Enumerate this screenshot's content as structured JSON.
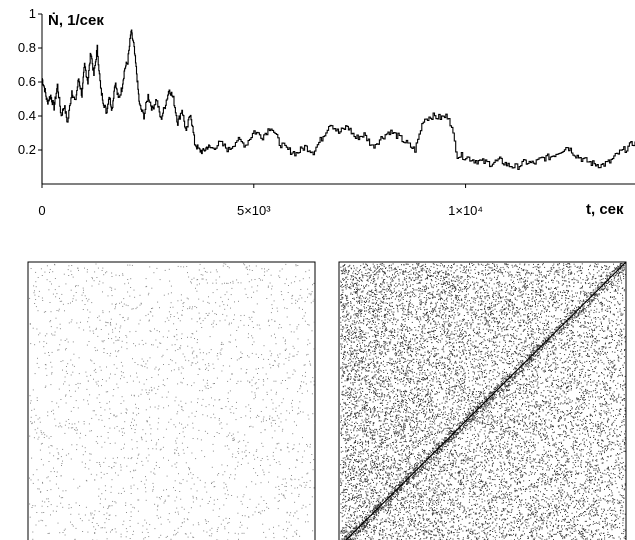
{
  "chart_data": [
    {
      "type": "line",
      "ylabel": "Ṅ, 1/сек",
      "xlabel": "t, сек",
      "xlim": [
        0,
        14000
      ],
      "ylim": [
        0,
        1
      ],
      "ytick_labels": [
        "0.2",
        "0.4",
        "0.6",
        "0.8",
        "1"
      ],
      "xtick_labels": [
        "0",
        "5×10³",
        "1×10⁴"
      ],
      "line_color": "#000000",
      "grid": false,
      "series": [
        {
          "x": [
            0,
            60,
            120,
            200,
            280,
            360,
            450,
            520,
            600,
            700,
            780,
            860,
            940,
            1000,
            1080,
            1150,
            1220,
            1300,
            1380,
            1450,
            1520,
            1580,
            1650,
            1720,
            1800,
            1880,
            1950,
            2020,
            2100,
            2160,
            2230,
            2300,
            2400,
            2500,
            2600,
            2700,
            2800,
            2900,
            3000,
            3100,
            3200,
            3300,
            3400,
            3500,
            3600,
            3700,
            3800,
            3900,
            4000,
            4200,
            4400,
            4600,
            4800,
            5000,
            5200,
            5400,
            5600,
            5800,
            6000,
            6200,
            6400,
            6600,
            6800,
            7000,
            7200,
            7400,
            7600,
            7800,
            8000,
            8200,
            8400,
            8600,
            8800,
            9000,
            9200,
            9400,
            9600,
            9800,
            10000,
            10200,
            10400,
            10600,
            10800,
            11000,
            11200,
            11400,
            11600,
            11800,
            12000,
            12200,
            12400,
            12600,
            12800,
            13000,
            13200,
            13400,
            13600,
            13800,
            14000
          ],
          "y": [
            0.62,
            0.56,
            0.48,
            0.52,
            0.45,
            0.58,
            0.4,
            0.46,
            0.36,
            0.55,
            0.48,
            0.62,
            0.52,
            0.7,
            0.6,
            0.78,
            0.64,
            0.8,
            0.56,
            0.48,
            0.42,
            0.52,
            0.44,
            0.6,
            0.5,
            0.56,
            0.68,
            0.72,
            0.9,
            0.82,
            0.65,
            0.46,
            0.4,
            0.52,
            0.44,
            0.5,
            0.38,
            0.46,
            0.56,
            0.5,
            0.36,
            0.44,
            0.3,
            0.42,
            0.24,
            0.2,
            0.19,
            0.22,
            0.21,
            0.24,
            0.2,
            0.26,
            0.23,
            0.31,
            0.28,
            0.34,
            0.24,
            0.2,
            0.18,
            0.22,
            0.19,
            0.27,
            0.36,
            0.3,
            0.34,
            0.27,
            0.29,
            0.22,
            0.27,
            0.31,
            0.28,
            0.24,
            0.2,
            0.38,
            0.4,
            0.39,
            0.4,
            0.17,
            0.16,
            0.14,
            0.13,
            0.12,
            0.14,
            0.11,
            0.1,
            0.13,
            0.12,
            0.15,
            0.16,
            0.19,
            0.22,
            0.17,
            0.14,
            0.12,
            0.11,
            0.13,
            0.18,
            0.21,
            0.25
          ]
        }
      ]
    },
    {
      "type": "scatter",
      "title": "",
      "grid": false,
      "dot_color": "#8a8a8a",
      "description_fill_density": 0.09,
      "diagonal": false
    },
    {
      "type": "scatter",
      "title": "",
      "grid": false,
      "dot_color": "#333333",
      "description_fill_density": 0.32,
      "diagonal": true
    }
  ]
}
